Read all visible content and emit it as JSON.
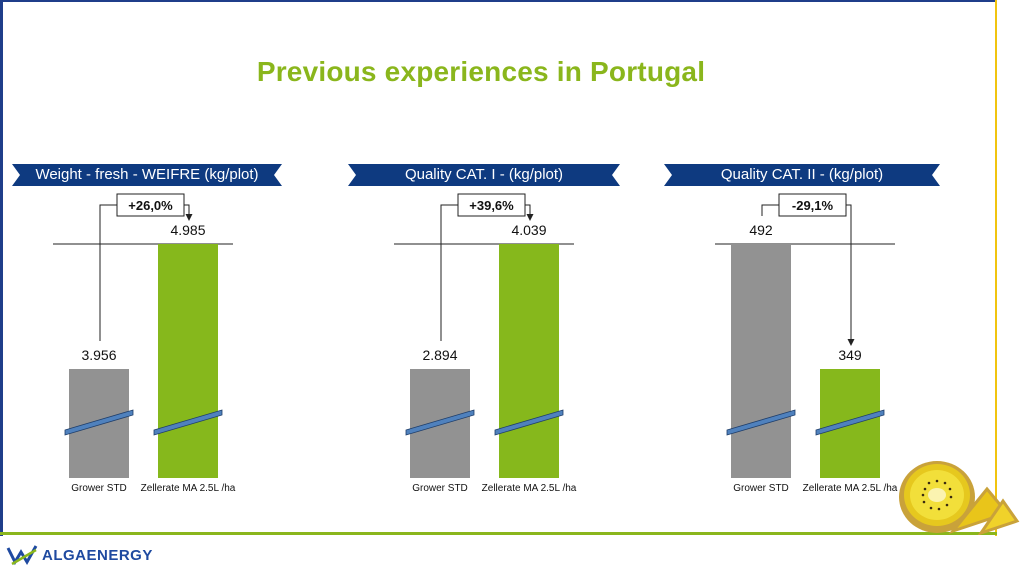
{
  "title": "Previous experiences in Portugal",
  "colors": {
    "title": "#8ab61c",
    "banner": "#0e3a80",
    "gray_bar": "#929292",
    "green_bar": "#86b81c",
    "break_line": "#4f81bd"
  },
  "chart_data": [
    {
      "type": "bar",
      "title": "Weight - fresh - WEIFRE (kg/plot)",
      "categories": [
        "Grower STD",
        "Zellerate MA 2.5L /ha"
      ],
      "values": [
        3956,
        4985
      ],
      "value_labels": [
        "3.956",
        "4.985"
      ],
      "change_label": "+26,0%",
      "axis_break": true
    },
    {
      "type": "bar",
      "title": "Quality CAT. I - (kg/plot)",
      "categories": [
        "Grower STD",
        "Zellerate MA 2.5L /ha"
      ],
      "values": [
        2894,
        4039
      ],
      "value_labels": [
        "2.894",
        "4.039"
      ],
      "change_label": "+39,6%",
      "axis_break": true
    },
    {
      "type": "bar",
      "title": "Quality CAT. II - (kg/plot)",
      "categories": [
        "Grower STD",
        "Zellerate MA 2.5L /ha"
      ],
      "values": [
        492,
        349
      ],
      "value_labels": [
        "492",
        "349"
      ],
      "change_label": "-29,1%",
      "axis_break": true
    }
  ],
  "logo": {
    "text": "ALGAENERGY"
  }
}
